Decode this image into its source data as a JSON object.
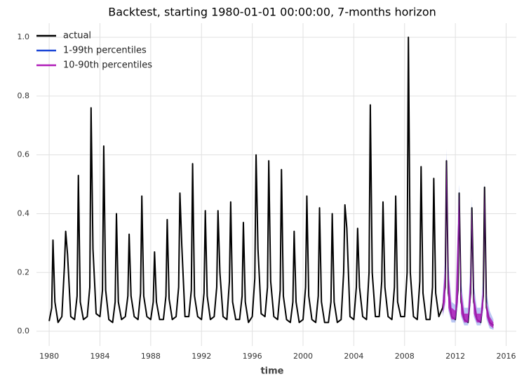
{
  "chart_data": {
    "type": "line",
    "title": "Backtest, starting 1980-01-01 00:00:00, 7-months horizon",
    "x_label": "time",
    "xlim": [
      1979.0,
      2016.8
    ],
    "ylim": [
      -0.05,
      1.048
    ],
    "xticks": [
      1980,
      1984,
      1988,
      1992,
      1996,
      2000,
      2004,
      2008,
      2012,
      2016
    ],
    "yticks": [
      {
        "value": 0,
        "label": "0.0"
      },
      {
        "value": 0.2,
        "label": "0.2"
      },
      {
        "value": 0.4,
        "label": "0.4"
      },
      {
        "value": 0.6,
        "label": "0.6"
      },
      {
        "value": 0.8,
        "label": "0.8"
      },
      {
        "value": 1,
        "label": "1.0"
      }
    ],
    "grid": true,
    "legend": "upper left",
    "series": [
      {
        "name": "actual",
        "color": "#000000",
        "x": [
          1980,
          1980.2,
          1980.3,
          1980.45,
          1980.7,
          1981,
          1981.2,
          1981.3,
          1981.45,
          1981.7,
          1982,
          1982.2,
          1982.3,
          1982.45,
          1982.7,
          1983,
          1983.2,
          1983.3,
          1983.45,
          1983.7,
          1984,
          1984.2,
          1984.3,
          1984.45,
          1984.7,
          1985,
          1985.2,
          1985.3,
          1985.45,
          1985.7,
          1986,
          1986.2,
          1986.3,
          1986.45,
          1986.7,
          1987,
          1987.2,
          1987.3,
          1987.45,
          1987.7,
          1988,
          1988.2,
          1988.3,
          1988.45,
          1988.7,
          1989,
          1989.2,
          1989.3,
          1989.45,
          1989.7,
          1990,
          1990.2,
          1990.3,
          1990.45,
          1990.7,
          1991,
          1991.2,
          1991.3,
          1991.45,
          1991.7,
          1992,
          1992.2,
          1992.3,
          1992.45,
          1992.7,
          1993,
          1993.2,
          1993.3,
          1993.45,
          1993.7,
          1994,
          1994.2,
          1994.3,
          1994.45,
          1994.7,
          1995,
          1995.2,
          1995.3,
          1995.45,
          1995.7,
          1996,
          1996.2,
          1996.3,
          1996.45,
          1996.7,
          1997,
          1997.2,
          1997.3,
          1997.45,
          1997.7,
          1998,
          1998.2,
          1998.3,
          1998.45,
          1998.7,
          1999,
          1999.2,
          1999.3,
          1999.45,
          1999.7,
          2000,
          2000.2,
          2000.3,
          2000.45,
          2000.7,
          2001,
          2001.2,
          2001.3,
          2001.45,
          2001.7,
          2002,
          2002.2,
          2002.3,
          2002.45,
          2002.7,
          2003,
          2003.2,
          2003.3,
          2003.45,
          2003.7,
          2004,
          2004.2,
          2004.3,
          2004.45,
          2004.7,
          2005,
          2005.2,
          2005.3,
          2005.45,
          2005.7,
          2006,
          2006.2,
          2006.3,
          2006.45,
          2006.7,
          2007,
          2007.2,
          2007.3,
          2007.45,
          2007.7,
          2008,
          2008.2,
          2008.3,
          2008.45,
          2008.7,
          2009,
          2009.2,
          2009.3,
          2009.45,
          2009.7,
          2010,
          2010.2,
          2010.3,
          2010.45,
          2010.7,
          2011,
          2011.2,
          2011.3,
          2011.45,
          2011.7,
          2012,
          2012.2,
          2012.3,
          2012.45,
          2012.7,
          2013,
          2013.2,
          2013.3,
          2013.45,
          2013.7,
          2014,
          2014.2,
          2014.3,
          2014.45,
          2014.7,
          2015
        ],
        "values": [
          0.035,
          0.08,
          0.31,
          0.1,
          0.03,
          0.05,
          0.22,
          0.34,
          0.26,
          0.05,
          0.04,
          0.12,
          0.53,
          0.1,
          0.04,
          0.05,
          0.15,
          0.76,
          0.28,
          0.06,
          0.05,
          0.14,
          0.63,
          0.14,
          0.04,
          0.03,
          0.1,
          0.4,
          0.1,
          0.04,
          0.05,
          0.12,
          0.33,
          0.12,
          0.05,
          0.04,
          0.13,
          0.46,
          0.12,
          0.05,
          0.04,
          0.1,
          0.27,
          0.1,
          0.04,
          0.04,
          0.12,
          0.38,
          0.11,
          0.04,
          0.05,
          0.15,
          0.47,
          0.29,
          0.05,
          0.05,
          0.14,
          0.57,
          0.12,
          0.05,
          0.04,
          0.13,
          0.41,
          0.12,
          0.04,
          0.05,
          0.15,
          0.41,
          0.2,
          0.05,
          0.04,
          0.17,
          0.44,
          0.1,
          0.04,
          0.04,
          0.12,
          0.37,
          0.1,
          0.03,
          0.05,
          0.18,
          0.6,
          0.28,
          0.06,
          0.05,
          0.15,
          0.58,
          0.17,
          0.05,
          0.04,
          0.14,
          0.55,
          0.12,
          0.04,
          0.03,
          0.1,
          0.34,
          0.1,
          0.03,
          0.04,
          0.15,
          0.46,
          0.12,
          0.04,
          0.03,
          0.12,
          0.42,
          0.1,
          0.03,
          0.03,
          0.1,
          0.4,
          0.1,
          0.03,
          0.04,
          0.2,
          0.43,
          0.35,
          0.05,
          0.04,
          0.15,
          0.35,
          0.15,
          0.05,
          0.04,
          0.2,
          0.77,
          0.2,
          0.05,
          0.05,
          0.17,
          0.44,
          0.15,
          0.05,
          0.04,
          0.15,
          0.46,
          0.1,
          0.05,
          0.05,
          0.2,
          1.0,
          0.2,
          0.05,
          0.04,
          0.17,
          0.56,
          0.13,
          0.04,
          0.04,
          0.15,
          0.52,
          0.13,
          0.05,
          0.08,
          0.15,
          0.58,
          0.13,
          0.05,
          0.04,
          0.14,
          0.47,
          0.1,
          0.04,
          0.03,
          0.13,
          0.42,
          0.1,
          0.04,
          0.03,
          0.12,
          0.49,
          0.08,
          0.03,
          0.02
        ]
      },
      {
        "name": "1-99th percentiles",
        "color": "#1a45d6",
        "x": [
          2011,
          2011.2,
          2011.3,
          2011.45,
          2011.7,
          2012,
          2012.2,
          2012.3,
          2012.45,
          2012.7,
          2013,
          2013.2,
          2013.3,
          2013.45,
          2013.7,
          2014,
          2014.2,
          2014.3,
          2014.45,
          2014.7,
          2015
        ],
        "lower": [
          0.05,
          0.09,
          0.47,
          0.07,
          0.03,
          0.03,
          0.09,
          0.36,
          0.05,
          0.02,
          0.02,
          0.09,
          0.33,
          0.05,
          0.02,
          0.02,
          0.07,
          0.4,
          0.04,
          0.01,
          0.005
        ],
        "upper": [
          0.12,
          0.25,
          0.62,
          0.23,
          0.1,
          0.09,
          0.38,
          0.5,
          0.17,
          0.08,
          0.08,
          0.23,
          0.45,
          0.16,
          0.08,
          0.08,
          0.18,
          0.51,
          0.13,
          0.07,
          0.04
        ]
      },
      {
        "name": "10-90th percentiles",
        "color": "#b01cb8",
        "x": [
          2011,
          2011.2,
          2011.3,
          2011.45,
          2011.7,
          2012,
          2012.2,
          2012.3,
          2012.45,
          2012.7,
          2013,
          2013.2,
          2013.3,
          2013.45,
          2013.7,
          2014,
          2014.2,
          2014.3,
          2014.45,
          2014.7,
          2015
        ],
        "lower": [
          0.06,
          0.1,
          0.5,
          0.08,
          0.04,
          0.04,
          0.1,
          0.38,
          0.06,
          0.03,
          0.03,
          0.1,
          0.35,
          0.06,
          0.03,
          0.03,
          0.08,
          0.42,
          0.05,
          0.02,
          0.01
        ],
        "upper": [
          0.1,
          0.22,
          0.59,
          0.2,
          0.08,
          0.07,
          0.35,
          0.47,
          0.14,
          0.06,
          0.06,
          0.2,
          0.42,
          0.13,
          0.06,
          0.06,
          0.15,
          0.49,
          0.1,
          0.05,
          0.03
        ]
      }
    ]
  }
}
